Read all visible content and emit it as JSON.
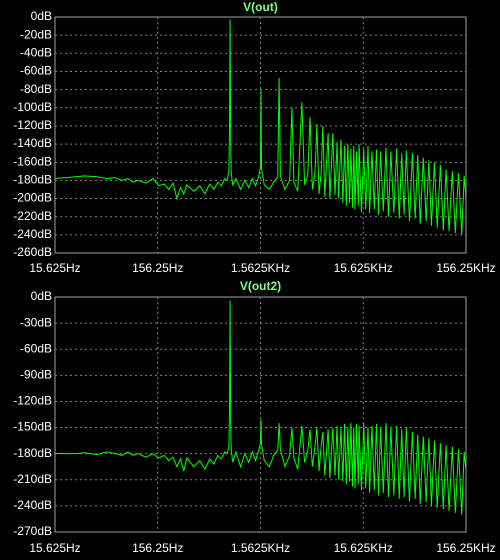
{
  "chart_data": [
    {
      "type": "line",
      "title": "V(out)",
      "color": "#00ff00",
      "x_scale": "log",
      "grid": true,
      "xlim": [
        15.625,
        156250
      ],
      "xticks": [
        {
          "value": 15.625,
          "label": "15.625Hz"
        },
        {
          "value": 156.25,
          "label": "156.25Hz"
        },
        {
          "value": 1562.5,
          "label": "1.5625KHz"
        },
        {
          "value": 15625,
          "label": "15.625KHz"
        },
        {
          "value": 156250,
          "label": "156.25KHz"
        }
      ],
      "ylim": [
        -260,
        0
      ],
      "yticks": [
        {
          "value": 0,
          "label": "0dB"
        },
        {
          "value": -20,
          "label": "-20dB"
        },
        {
          "value": -40,
          "label": "-40dB"
        },
        {
          "value": -60,
          "label": "-60dB"
        },
        {
          "value": -80,
          "label": "-80dB"
        },
        {
          "value": -100,
          "label": "-100dB"
        },
        {
          "value": -120,
          "label": "-120dB"
        },
        {
          "value": -140,
          "label": "-140dB"
        },
        {
          "value": -160,
          "label": "-160dB"
        },
        {
          "value": -180,
          "label": "-180dB"
        },
        {
          "value": -200,
          "label": "-200dB"
        },
        {
          "value": -220,
          "label": "-220dB"
        },
        {
          "value": -240,
          "label": "-240dB"
        },
        {
          "value": -260,
          "label": "-260dB"
        }
      ],
      "x": [
        15.625,
        20,
        25,
        30,
        40,
        50,
        60,
        70,
        80,
        90,
        100,
        120,
        140,
        160,
        180,
        200,
        220,
        240,
        260,
        280,
        300,
        350,
        400,
        450,
        500,
        550,
        600,
        650,
        700,
        740,
        770,
        780,
        790,
        800,
        810,
        840,
        900,
        1000,
        1100,
        1200,
        1300,
        1400,
        1500,
        1560,
        1580,
        1600,
        1700,
        1900,
        2100,
        2300,
        2370,
        2440,
        2700,
        3000,
        3160,
        3300,
        3600,
        3950,
        4200,
        4500,
        4740,
        5000,
        5300,
        5530,
        5800,
        6100,
        6320,
        6600,
        7110,
        7400,
        7900,
        8300,
        8690,
        9000,
        9480,
        9900,
        10270,
        10700,
        11060,
        11500,
        11850,
        12300,
        12640,
        13000,
        13430,
        14000,
        14220,
        15000,
        15800,
        16500,
        17380,
        18000,
        19000,
        20000,
        21000,
        22000,
        23000,
        24500,
        26000,
        27500,
        29000,
        31000,
        33000,
        35000,
        37000,
        39000,
        41000,
        44000,
        47000,
        50000,
        53000,
        56000,
        60000,
        64000,
        68000,
        72000,
        77000,
        82000,
        88000,
        94000,
        100000,
        107000,
        115000,
        123000,
        132000,
        142000,
        150000,
        156250
      ],
      "values": [
        -178,
        -177,
        -176,
        -175,
        -176,
        -178,
        -177,
        -180,
        -178,
        -182,
        -180,
        -183,
        -178,
        -186,
        -184,
        -190,
        -183,
        -200,
        -188,
        -195,
        -185,
        -192,
        -186,
        -195,
        -184,
        -190,
        -182,
        -186,
        -178,
        -180,
        -170,
        -120,
        -3,
        -125,
        -172,
        -185,
        -178,
        -190,
        -180,
        -188,
        -178,
        -186,
        -176,
        -165,
        -80,
        -168,
        -185,
        -190,
        -182,
        -176,
        -67,
        -175,
        -190,
        -180,
        -100,
        -182,
        -192,
        -94,
        -185,
        -175,
        -110,
        -190,
        -172,
        -118,
        -195,
        -170,
        -120,
        -198,
        -128,
        -200,
        -128,
        -196,
        -138,
        -200,
        -135,
        -205,
        -142,
        -208,
        -140,
        -205,
        -145,
        -210,
        -142,
        -212,
        -148,
        -208,
        -140,
        -215,
        -145,
        -212,
        -142,
        -216,
        -148,
        -212,
        -146,
        -218,
        -148,
        -214,
        -144,
        -220,
        -148,
        -216,
        -145,
        -222,
        -150,
        -218,
        -147,
        -225,
        -150,
        -222,
        -152,
        -228,
        -155,
        -225,
        -158,
        -230,
        -160,
        -232,
        -163,
        -235,
        -168,
        -236,
        -170,
        -238,
        -172,
        -240,
        -175,
        -200
      ]
    },
    {
      "type": "line",
      "title": "V(out2)",
      "color": "#00ff00",
      "x_scale": "log",
      "grid": true,
      "xlim": [
        15.625,
        156250
      ],
      "xticks": [
        {
          "value": 15.625,
          "label": "15.625Hz"
        },
        {
          "value": 156.25,
          "label": "156.25Hz"
        },
        {
          "value": 1562.5,
          "label": "1.5625KHz"
        },
        {
          "value": 15625,
          "label": "15.625KHz"
        },
        {
          "value": 156250,
          "label": "156.25KHz"
        }
      ],
      "ylim": [
        -270,
        0
      ],
      "yticks": [
        {
          "value": 0,
          "label": "0dB"
        },
        {
          "value": -30,
          "label": "-30dB"
        },
        {
          "value": -60,
          "label": "-60dB"
        },
        {
          "value": -90,
          "label": "-90dB"
        },
        {
          "value": -120,
          "label": "-120dB"
        },
        {
          "value": -150,
          "label": "-150dB"
        },
        {
          "value": -180,
          "label": "-180dB"
        },
        {
          "value": -210,
          "label": "-210dB"
        },
        {
          "value": -240,
          "label": "-240dB"
        },
        {
          "value": -270,
          "label": "-270dB"
        }
      ],
      "x": [
        15.625,
        20,
        25,
        30,
        40,
        50,
        60,
        70,
        80,
        90,
        100,
        120,
        140,
        160,
        180,
        200,
        220,
        240,
        260,
        280,
        300,
        350,
        400,
        450,
        500,
        550,
        600,
        650,
        700,
        740,
        770,
        780,
        790,
        800,
        810,
        840,
        900,
        1000,
        1100,
        1200,
        1300,
        1400,
        1500,
        1560,
        1580,
        1600,
        1700,
        1900,
        2100,
        2300,
        2370,
        2440,
        2700,
        3000,
        3160,
        3300,
        3600,
        3950,
        4200,
        4500,
        4740,
        5000,
        5300,
        5530,
        5800,
        6100,
        6320,
        6600,
        7110,
        7400,
        7900,
        8300,
        8690,
        9000,
        9480,
        9900,
        10270,
        10700,
        11060,
        11500,
        11850,
        12300,
        12640,
        13000,
        13430,
        14000,
        14220,
        15000,
        15800,
        16500,
        17380,
        18000,
        19000,
        20000,
        21000,
        22000,
        23000,
        24500,
        26000,
        27500,
        29000,
        31000,
        33000,
        35000,
        37000,
        39000,
        41000,
        44000,
        47000,
        50000,
        53000,
        56000,
        60000,
        64000,
        68000,
        72000,
        77000,
        82000,
        88000,
        94000,
        100000,
        107000,
        115000,
        123000,
        132000,
        142000,
        150000,
        156250
      ],
      "values": [
        -180,
        -180,
        -180,
        -179,
        -181,
        -178,
        -180,
        -182,
        -178,
        -182,
        -180,
        -184,
        -180,
        -185,
        -182,
        -188,
        -184,
        -195,
        -186,
        -200,
        -185,
        -195,
        -188,
        -198,
        -186,
        -192,
        -182,
        -186,
        -178,
        -180,
        -172,
        -130,
        -4,
        -135,
        -175,
        -190,
        -178,
        -195,
        -180,
        -190,
        -178,
        -188,
        -176,
        -168,
        -140,
        -170,
        -188,
        -195,
        -182,
        -176,
        -145,
        -175,
        -195,
        -182,
        -150,
        -185,
        -198,
        -148,
        -190,
        -178,
        -152,
        -195,
        -172,
        -150,
        -200,
        -170,
        -155,
        -205,
        -152,
        -208,
        -150,
        -205,
        -148,
        -210,
        -150,
        -212,
        -146,
        -215,
        -150,
        -212,
        -145,
        -218,
        -150,
        -220,
        -146,
        -215,
        -148,
        -222,
        -145,
        -220,
        -150,
        -225,
        -148,
        -222,
        -146,
        -228,
        -150,
        -225,
        -145,
        -230,
        -150,
        -228,
        -148,
        -232,
        -152,
        -230,
        -150,
        -235,
        -155,
        -232,
        -158,
        -238,
        -160,
        -236,
        -162,
        -240,
        -165,
        -242,
        -168,
        -244,
        -170,
        -246,
        -172,
        -248,
        -175,
        -250,
        -178,
        -200
      ]
    }
  ]
}
